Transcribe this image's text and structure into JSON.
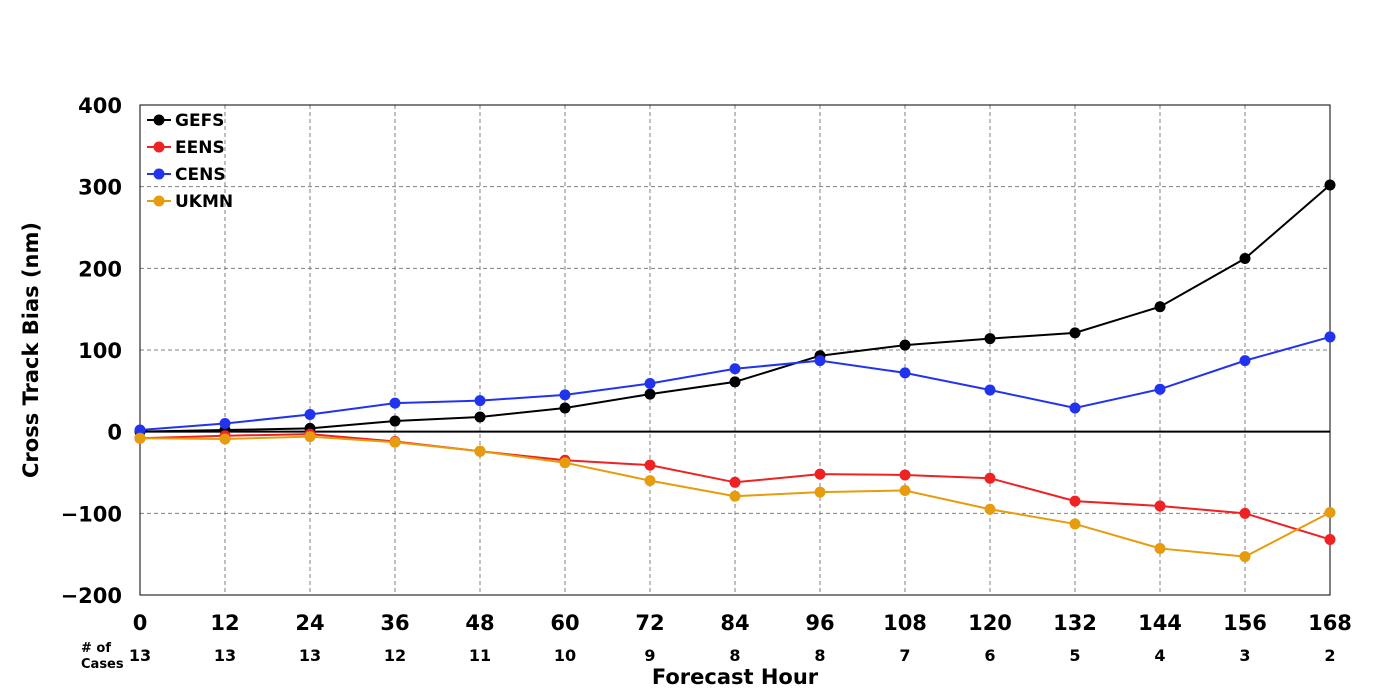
{
  "chart_data": {
    "type": "line",
    "xlabel": "Forecast Hour",
    "ylabel": "Cross Track Bias (nm)",
    "x": [
      0,
      12,
      24,
      36,
      48,
      60,
      72,
      84,
      96,
      108,
      120,
      132,
      144,
      156,
      168
    ],
    "xlim": [
      0,
      168
    ],
    "ylim": [
      -200,
      400
    ],
    "yticks": [
      -200,
      -100,
      0,
      100,
      200,
      300,
      400
    ],
    "ytick_labels": [
      "−200",
      "−100",
      "0",
      "100",
      "200",
      "300",
      "400"
    ],
    "grid": true,
    "legend_position": "top-left",
    "cases_label_line1": "# of",
    "cases_label_line2": "Cases",
    "cases": [
      13,
      13,
      13,
      12,
      11,
      10,
      9,
      8,
      8,
      7,
      6,
      5,
      4,
      3,
      2
    ],
    "series": [
      {
        "name": "GEFS",
        "color": "#000000",
        "values": [
          0,
          2,
          4,
          13,
          18,
          29,
          46,
          61,
          93,
          106,
          114,
          121,
          153,
          212,
          302
        ]
      },
      {
        "name": "EENS",
        "color": "#ee2222",
        "values": [
          -8,
          -5,
          -3,
          -12,
          -24,
          -35,
          -41,
          -62,
          -52,
          -53,
          -57,
          -85,
          -91,
          -100,
          -132
        ]
      },
      {
        "name": "CENS",
        "color": "#2233ee",
        "values": [
          2,
          10,
          21,
          35,
          38,
          45,
          59,
          77,
          87,
          72,
          51,
          29,
          52,
          87,
          116
        ]
      },
      {
        "name": "UKMN",
        "color": "#e69c0c",
        "values": [
          -8,
          -9,
          -6,
          -13,
          -24,
          -38,
          -60,
          -79,
          -74,
          -72,
          -95,
          -113,
          -143,
          -153,
          -99
        ]
      }
    ]
  }
}
